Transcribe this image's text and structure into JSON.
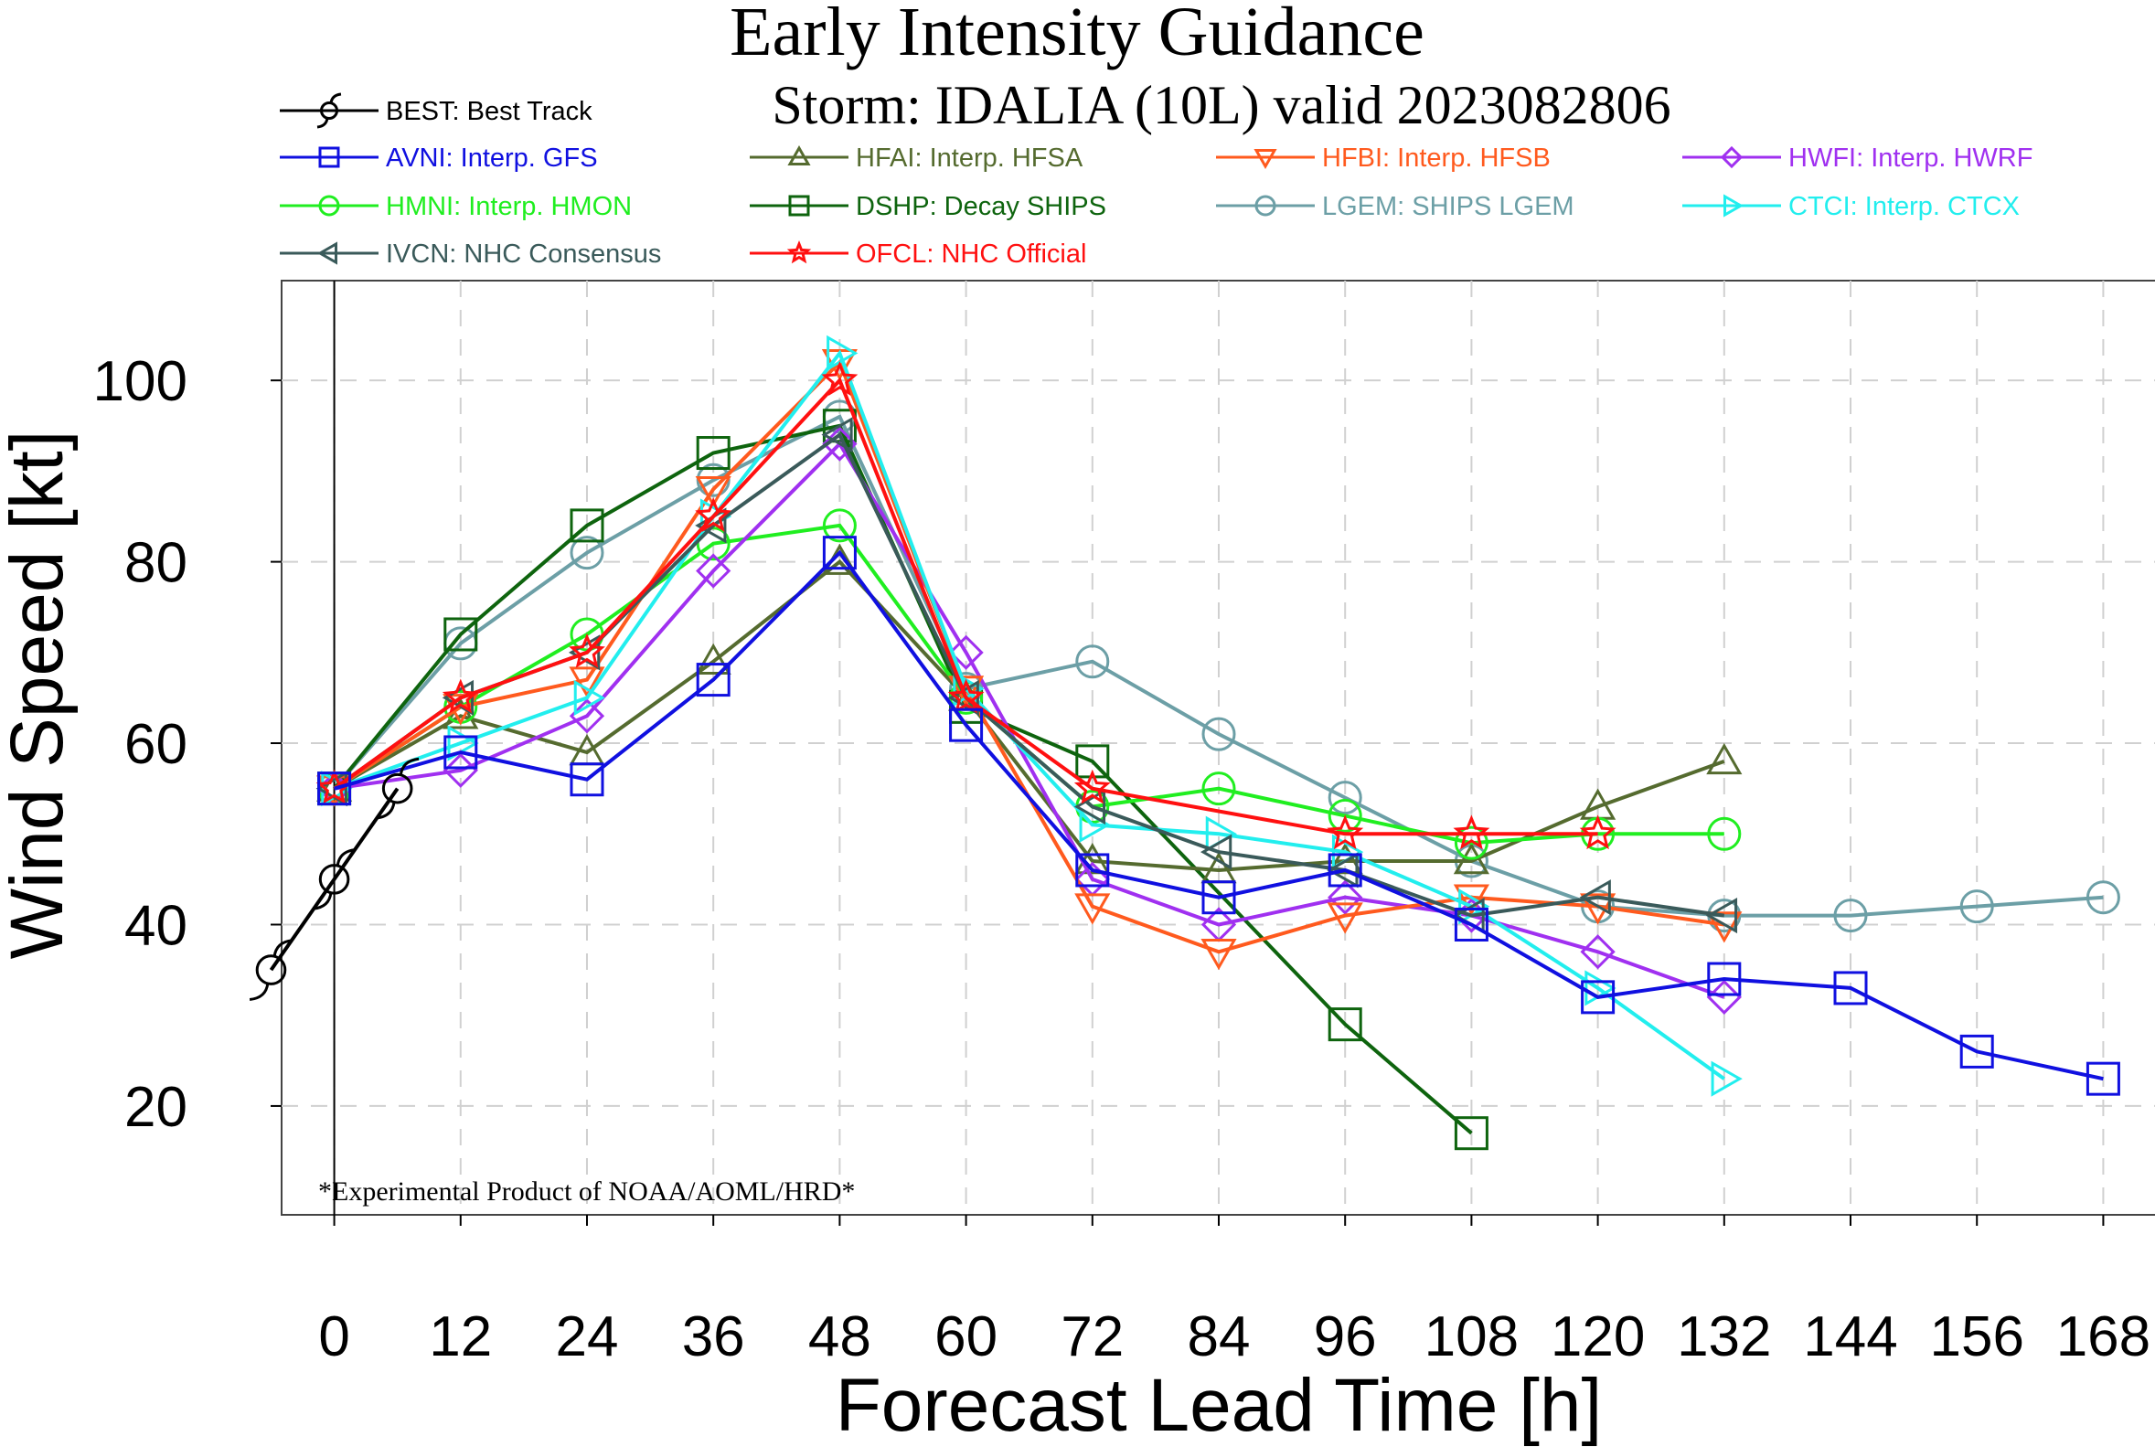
{
  "chart_data": {
    "type": "line",
    "title": "Early Intensity Guidance",
    "subtitle": "Storm: IDALIA (10L) valid 2023082806",
    "xlabel": "Forecast Lead Time [h]",
    "ylabel": "Wind Speed [kt]",
    "xlim": [
      -5,
      173
    ],
    "ylim": [
      8,
      111
    ],
    "x_ticks": [
      0,
      12,
      24,
      36,
      48,
      60,
      72,
      84,
      96,
      108,
      120,
      132,
      144,
      156,
      168
    ],
    "y_ticks": [
      20,
      40,
      60,
      80,
      100
    ],
    "grid": true,
    "legend_position": "top, above plot",
    "annotation": "*Experimental Product of NOAA/AOML/HRD*",
    "series": [
      {
        "name": "BEST: Best Track",
        "color": "#000000",
        "marker": "hurricane",
        "x": [
          -6,
          0,
          6
        ],
        "y": [
          35,
          45,
          55
        ]
      },
      {
        "name": "AVNI: Interp. GFS",
        "color": "#1010e0",
        "marker": "square",
        "x": [
          0,
          12,
          24,
          36,
          48,
          60,
          72,
          84,
          96,
          108,
          120,
          132,
          144,
          156,
          168
        ],
        "y": [
          55,
          59,
          56,
          67,
          81,
          62,
          46,
          43,
          46,
          40,
          32,
          34,
          33,
          26,
          23
        ]
      },
      {
        "name": "HFAI: Interp. HFSA",
        "color": "#556b2f",
        "marker": "triangle-up",
        "x": [
          0,
          12,
          24,
          36,
          48,
          60,
          72,
          84,
          96,
          108,
          120,
          132
        ],
        "y": [
          55,
          63,
          59,
          69,
          80,
          65,
          47,
          46,
          47,
          47,
          53,
          58
        ]
      },
      {
        "name": "HFBI: Interp. HFSB",
        "color": "#ff5a1e",
        "marker": "triangle-down",
        "x": [
          0,
          12,
          24,
          36,
          48,
          60,
          72,
          84,
          96,
          108,
          120,
          132
        ],
        "y": [
          55,
          64,
          67,
          88,
          102,
          66,
          42,
          37,
          41,
          43,
          42,
          40
        ]
      },
      {
        "name": "HWFI: Interp. HWRF",
        "color": "#a030f0",
        "marker": "diamond",
        "x": [
          0,
          12,
          24,
          36,
          48,
          60,
          72,
          84,
          96,
          108,
          120,
          132
        ],
        "y": [
          55,
          57,
          63,
          79,
          93,
          70,
          45,
          40,
          43,
          41,
          37,
          32
        ]
      },
      {
        "name": "HMNI: Interp. HMON",
        "color": "#20ee20",
        "marker": "circle",
        "x": [
          0,
          12,
          24,
          36,
          48,
          60,
          72,
          84,
          96,
          108,
          120,
          132
        ],
        "y": [
          55,
          64,
          72,
          82,
          84,
          65,
          53,
          55,
          52,
          49,
          50,
          50
        ]
      },
      {
        "name": "DSHP: Decay SHIPS",
        "color": "#0e640e",
        "marker": "square",
        "x": [
          0,
          12,
          24,
          36,
          48,
          60,
          72,
          96,
          108
        ],
        "y": [
          55,
          72,
          84,
          92,
          95,
          64,
          58,
          29,
          17
        ]
      },
      {
        "name": "LGEM: SHIPS LGEM",
        "color": "#6c9fa6",
        "marker": "circle",
        "x": [
          0,
          12,
          24,
          36,
          48,
          60,
          72,
          84,
          96,
          108,
          120,
          132,
          144,
          156,
          168
        ],
        "y": [
          55,
          71,
          81,
          89,
          96,
          66,
          69,
          61,
          54,
          47,
          42,
          41,
          41,
          42,
          43
        ]
      },
      {
        "name": "CTCI: Interp. CTCX",
        "color": "#22eeee",
        "marker": "triangle-right",
        "x": [
          0,
          12,
          24,
          36,
          48,
          60,
          72,
          84,
          96,
          108,
          120,
          132
        ],
        "y": [
          55,
          60,
          65,
          85,
          103,
          66,
          51,
          50,
          48,
          42,
          33,
          23
        ]
      },
      {
        "name": "IVCN: NHC Consensus",
        "color": "#3a5a5a",
        "marker": "triangle-left",
        "x": [
          0,
          12,
          24,
          36,
          48,
          60,
          72,
          84,
          96,
          108,
          120,
          132
        ],
        "y": [
          55,
          65,
          70,
          84,
          94,
          65,
          53,
          48,
          46,
          41,
          43,
          41
        ]
      },
      {
        "name": "OFCL: NHC Official",
        "color": "#ff1010",
        "marker": "star",
        "x": [
          0,
          12,
          24,
          36,
          48,
          60,
          72,
          96,
          108,
          120
        ],
        "y": [
          55,
          65,
          70,
          85,
          100,
          65,
          55,
          50,
          50,
          50
        ]
      }
    ]
  }
}
